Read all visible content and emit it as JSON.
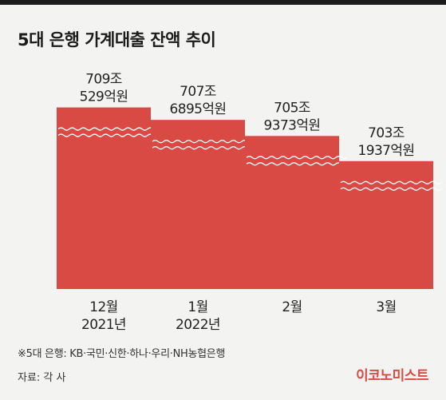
{
  "title": "5대 은행 가계대출 잔액 추이",
  "footnote": "※5대 은행: KB·국민·신한·하나·우리·NH농협은행",
  "source": "자료: 각 사",
  "brand": "이코노미스트",
  "colors": {
    "bar": "#d94a45",
    "background": "#f3f3f1",
    "topbar": "#1c1c1c",
    "brand": "#d94a45"
  },
  "chart_data": {
    "type": "bar",
    "title": "5대 은행 가계대출 잔액 추이",
    "categories": [
      [
        "12월",
        "2021년"
      ],
      [
        "1월",
        "2022년"
      ],
      [
        "2월"
      ],
      [
        "3월"
      ]
    ],
    "value_labels": [
      [
        "709조",
        "529억원"
      ],
      [
        "707조",
        "6895억원"
      ],
      [
        "705조",
        "9373억원"
      ],
      [
        "703조",
        "1937억원"
      ]
    ],
    "values": [
      7090529,
      7076895,
      7059373,
      7031937
    ],
    "unit": "억원",
    "axis_break": true,
    "grid": false,
    "legend": "none"
  }
}
